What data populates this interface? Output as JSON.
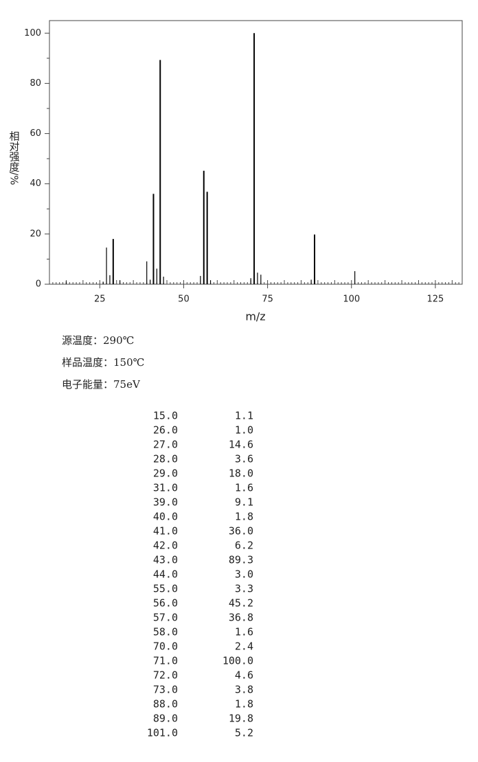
{
  "chart_data": {
    "type": "bar",
    "x_label": "m/z",
    "y_label": "相对强度/%",
    "x": [
      15,
      26,
      27,
      28,
      29,
      31,
      39,
      40,
      41,
      42,
      43,
      44,
      55,
      56,
      57,
      58,
      70,
      71,
      72,
      73,
      88,
      89,
      101
    ],
    "values": [
      1.1,
      1.0,
      14.6,
      3.6,
      18.0,
      1.6,
      9.1,
      1.8,
      36.0,
      6.2,
      89.3,
      3.0,
      3.3,
      45.2,
      36.8,
      1.6,
      2.4,
      100.0,
      4.6,
      3.8,
      1.8,
      19.8,
      5.2
    ],
    "color": "#000000",
    "xlim": [
      10,
      133
    ],
    "ylim": [
      0,
      105
    ],
    "xticks": [
      25,
      50,
      75,
      100,
      125
    ],
    "yticks": [
      0,
      20,
      40,
      60,
      80,
      100
    ]
  },
  "conditions": [
    "源温度：290℃",
    "样品温度：150℃",
    "电子能量：75eV"
  ],
  "peak_table": {
    "rows": [
      [
        "15.0",
        "1.1"
      ],
      [
        "26.0",
        "1.0"
      ],
      [
        "27.0",
        "14.6"
      ],
      [
        "28.0",
        "3.6"
      ],
      [
        "29.0",
        "18.0"
      ],
      [
        "31.0",
        "1.6"
      ],
      [
        "39.0",
        "9.1"
      ],
      [
        "40.0",
        "1.8"
      ],
      [
        "41.0",
        "36.0"
      ],
      [
        "42.0",
        "6.2"
      ],
      [
        "43.0",
        "89.3"
      ],
      [
        "44.0",
        "3.0"
      ],
      [
        "55.0",
        "3.3"
      ],
      [
        "56.0",
        "45.2"
      ],
      [
        "57.0",
        "36.8"
      ],
      [
        "58.0",
        "1.6"
      ],
      [
        "70.0",
        "2.4"
      ],
      [
        "71.0",
        "100.0"
      ],
      [
        "72.0",
        "4.6"
      ],
      [
        "73.0",
        "3.8"
      ],
      [
        "88.0",
        "1.8"
      ],
      [
        "89.0",
        "19.8"
      ],
      [
        "101.0",
        "5.2"
      ]
    ]
  }
}
